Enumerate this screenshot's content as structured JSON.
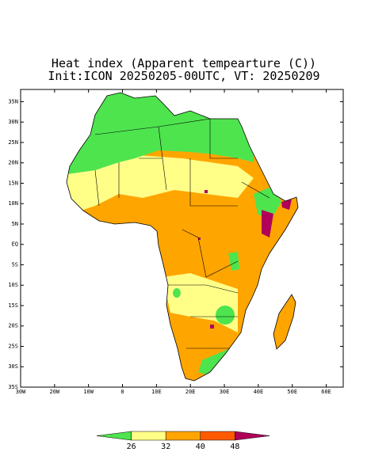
{
  "map": {
    "title": "Heat index (Apparent tempearture (C))",
    "subtitle": "Init:ICON 20250205-00UTC, VT: 20250209",
    "lonlim": [
      -30,
      65
    ],
    "latlim": [
      -35,
      38
    ],
    "lat_ticks": [
      {
        "value": 35,
        "label": "35N"
      },
      {
        "value": 30,
        "label": "30N"
      },
      {
        "value": 25,
        "label": "25N"
      },
      {
        "value": 20,
        "label": "20N"
      },
      {
        "value": 15,
        "label": "15N"
      },
      {
        "value": 10,
        "label": "10N"
      },
      {
        "value": 5,
        "label": "5N"
      },
      {
        "value": 0,
        "label": "EQ"
      },
      {
        "value": -5,
        "label": "5S"
      },
      {
        "value": -10,
        "label": "10S"
      },
      {
        "value": -15,
        "label": "15S"
      },
      {
        "value": -20,
        "label": "20S"
      },
      {
        "value": -25,
        "label": "25S"
      },
      {
        "value": -30,
        "label": "30S"
      },
      {
        "value": -35,
        "label": "35S"
      }
    ],
    "lon_ticks": [
      {
        "value": -30,
        "label": "30W"
      },
      {
        "value": -20,
        "label": "20W"
      },
      {
        "value": -10,
        "label": "10W"
      },
      0,
      {
        "value": 10,
        "label": "10E"
      },
      {
        "value": 20,
        "label": "20E"
      },
      {
        "value": 30,
        "label": "30E"
      },
      {
        "value": 40,
        "label": "40E"
      },
      {
        "value": 50,
        "label": "50E"
      },
      {
        "value": 60,
        "label": "60E"
      }
    ],
    "colorbar": {
      "levels": [
        26,
        32,
        40,
        48
      ],
      "colors": [
        "#4ee44e",
        "#ffff88",
        "#ffa500",
        "#ff5a00",
        "#b0005a"
      ]
    }
  }
}
